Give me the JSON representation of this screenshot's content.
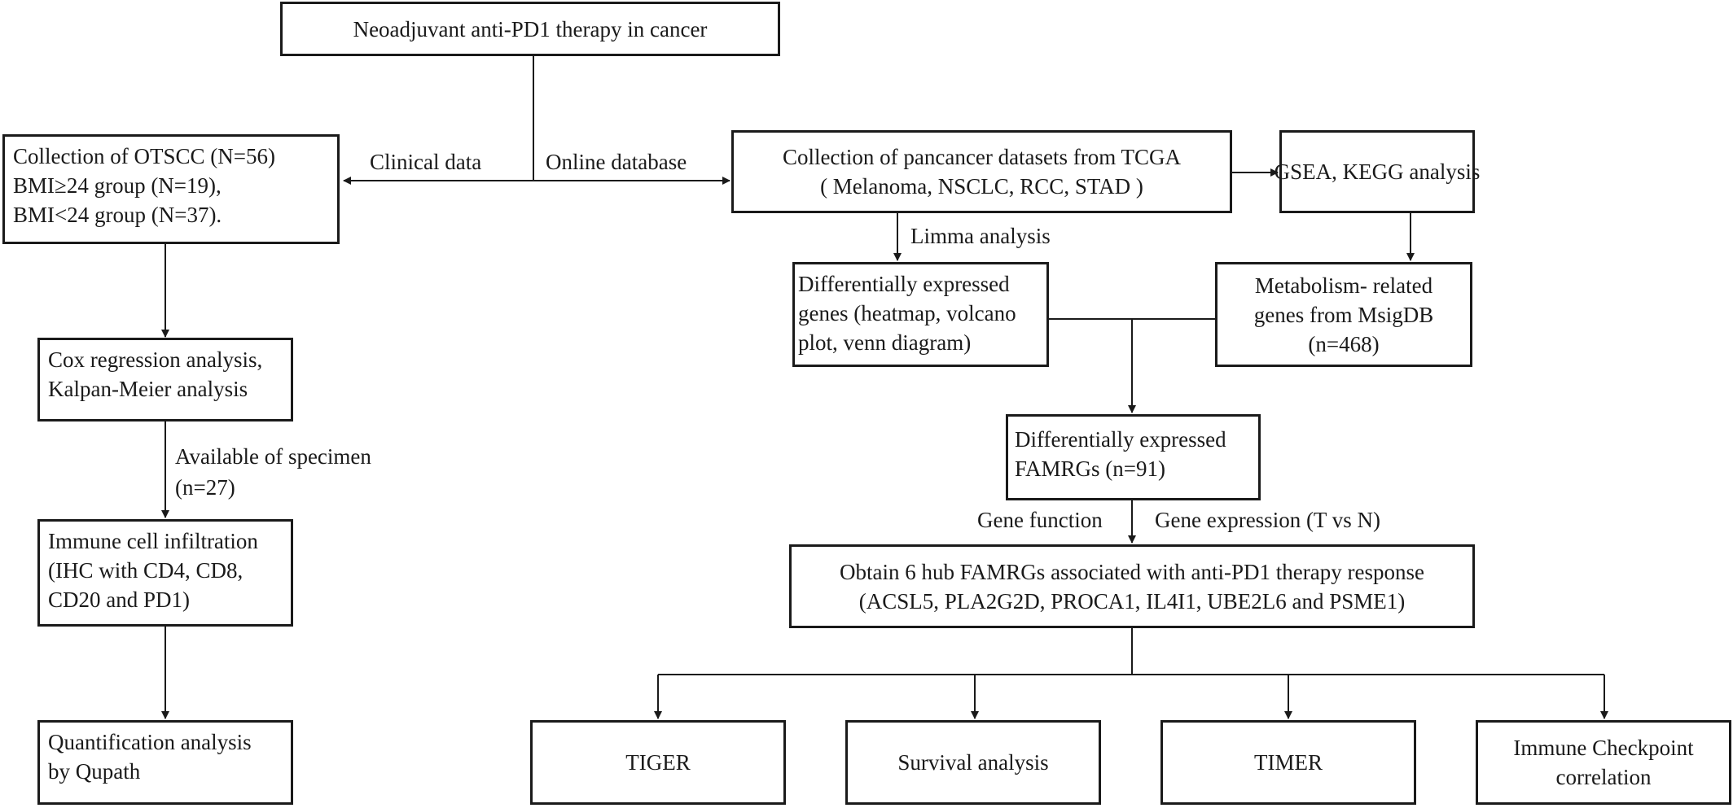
{
  "boxes": {
    "neoadjuvant": {
      "lines": [
        "Neoadjuvant anti-PD1 therapy in cancer"
      ]
    },
    "otscc": {
      "lines": [
        "Collection of OTSCC (N=56)",
        "BMI≥24 group (N=19),",
        "BMI<24 group (N=37)."
      ]
    },
    "cox": {
      "lines": [
        "Cox regression analysis,",
        "Kalpan-Meier analysis"
      ]
    },
    "immune_cell": {
      "lines": [
        "Immune cell infiltration",
        "(IHC with CD4, CD8,",
        "CD20 and PD1)"
      ]
    },
    "quantification": {
      "lines": [
        "Quantification analysis",
        "by Qupath"
      ]
    },
    "pancancer": {
      "lines": [
        "Collection of pancancer datasets from TCGA",
        "( Melanoma, NSCLC, RCC, STAD )"
      ]
    },
    "gsea": {
      "lines": [
        "GSEA, KEGG analysis"
      ]
    },
    "degs": {
      "lines": [
        "Differentially expressed",
        "genes (heatmap, volcano",
        "plot, venn diagram)"
      ]
    },
    "metabolism": {
      "lines": [
        "Metabolism- related",
        "genes from MsigDB",
        "(n=468)"
      ]
    },
    "famrgs": {
      "lines": [
        "Differentially expressed",
        "FAMRGs (n=91)"
      ]
    },
    "hub": {
      "lines": [
        "Obtain 6 hub FAMRGs associated with anti-PD1 therapy response",
        "(ACSL5, PLA2G2D, PROCA1, IL4I1, UBE2L6 and PSME1)"
      ]
    },
    "tiger": {
      "lines": [
        "TIGER"
      ]
    },
    "survival": {
      "lines": [
        "Survival analysis"
      ]
    },
    "timer": {
      "lines": [
        "TIMER"
      ]
    },
    "checkpoint": {
      "lines": [
        "Immune Checkpoint",
        "correlation"
      ]
    }
  },
  "labels": {
    "clinical_data": "Clinical data",
    "online_database": "Online database",
    "limma": "Limma analysis",
    "specimen": [
      "Available of specimen",
      "(n=27)"
    ],
    "gene_function": "Gene function",
    "gene_expression": "Gene expression (T vs N)"
  }
}
